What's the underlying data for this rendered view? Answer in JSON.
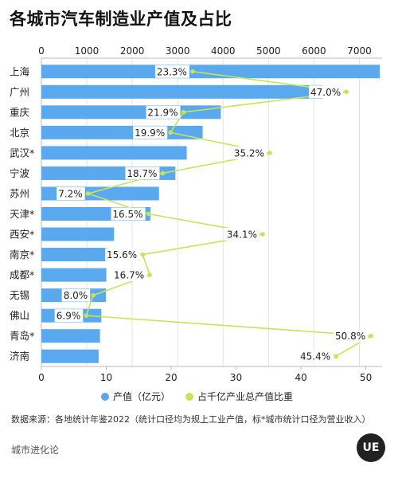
{
  "title": "各城市汽车制造业产值及占比",
  "source_note": "数据来源：各地统计年鉴2022（统计口径均为规上工业产值，标*城市统计口径为营业收入）",
  "brand": "城市进化论",
  "logo_text": "UE",
  "colors": {
    "bar": "#5aa9ee",
    "line": "#c8e35a",
    "percent_box": "#ffffff"
  },
  "chart_data": {
    "type": "bar",
    "orientation": "horizontal",
    "categories": [
      "上海",
      "广州",
      "重庆",
      "北京",
      "武汉*",
      "宁波",
      "苏州",
      "天津*",
      "西安*",
      "南京*",
      "成都*",
      "无锡",
      "佛山",
      "青岛*",
      "济南"
    ],
    "series": [
      {
        "name": "产值（亿元）",
        "axis": "top",
        "values": [
          7450,
          6200,
          3950,
          3550,
          3200,
          2950,
          2590,
          2400,
          1600,
          1450,
          1430,
          1420,
          1320,
          1290,
          1260
        ]
      },
      {
        "name": "占千亿产业总产值比重",
        "axis": "bottom",
        "type": "line",
        "unit": "%",
        "values": [
          23.3,
          47.0,
          21.9,
          19.9,
          35.2,
          18.7,
          7.2,
          16.5,
          34.1,
          15.6,
          16.7,
          8.0,
          6.9,
          50.8,
          45.4
        ]
      }
    ],
    "labels": [
      "23.3%",
      "47.0%",
      "21.9%",
      "19.9%",
      "35.2%",
      "18.7%",
      "7.2%",
      "16.5%",
      "34.1%",
      "15.6%",
      "16.7%",
      "8.0%",
      "6.9%",
      "50.8%",
      "45.4%"
    ],
    "top_axis": {
      "range": [
        0,
        7500
      ],
      "ticks": [
        "0",
        "1000",
        "2000",
        "3000",
        "4000",
        "5000",
        "6000",
        "7000"
      ]
    },
    "bottom_axis": {
      "range": [
        0,
        52.5
      ],
      "ticks": [
        "0",
        "10",
        "20",
        "30",
        "40",
        "50"
      ]
    },
    "grid": true,
    "legend_position": "bottom"
  }
}
